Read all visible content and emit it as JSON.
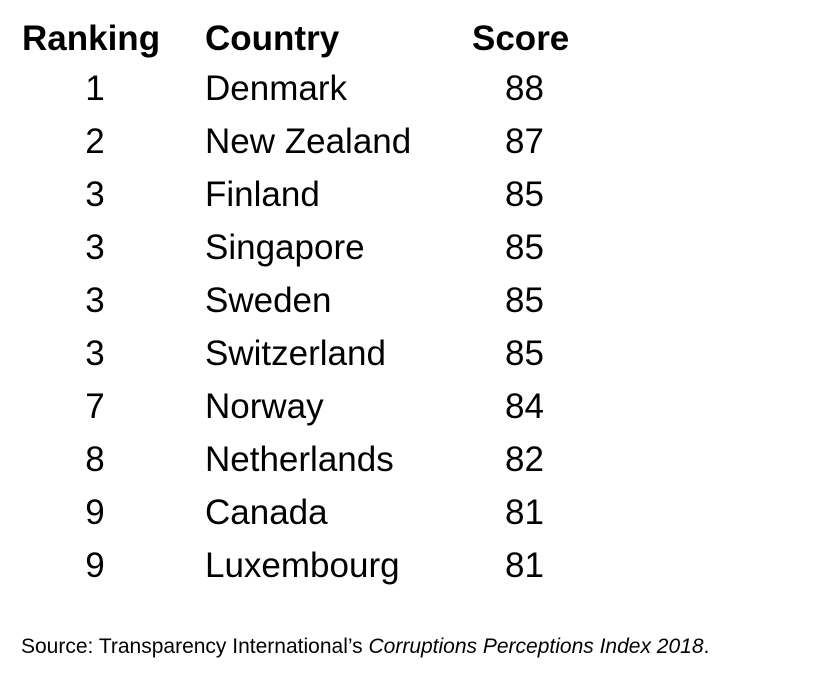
{
  "chart_data": {
    "type": "table",
    "columns": [
      "Ranking",
      "Country",
      "Score"
    ],
    "rows": [
      {
        "rank": "1",
        "country": "Denmark",
        "score": 88
      },
      {
        "rank": "2",
        "country": "New Zealand",
        "score": 87
      },
      {
        "rank": "3",
        "country": "Finland",
        "score": 85
      },
      {
        "rank": "3",
        "country": "Singapore",
        "score": 85
      },
      {
        "rank": "3",
        "country": "Sweden",
        "score": 85
      },
      {
        "rank": "3",
        "country": "Switzerland",
        "score": 85
      },
      {
        "rank": "7",
        "country": "Norway",
        "score": 84
      },
      {
        "rank": "8",
        "country": "Netherlands",
        "score": 82
      },
      {
        "rank": "9",
        "country": "Canada",
        "score": 81
      },
      {
        "rank": "9",
        "country": "Luxembourg",
        "score": 81
      }
    ]
  },
  "source": {
    "prefix": "Source: Transparency International’s ",
    "italic": "Corruptions Perceptions Index 2018",
    "suffix": "."
  }
}
